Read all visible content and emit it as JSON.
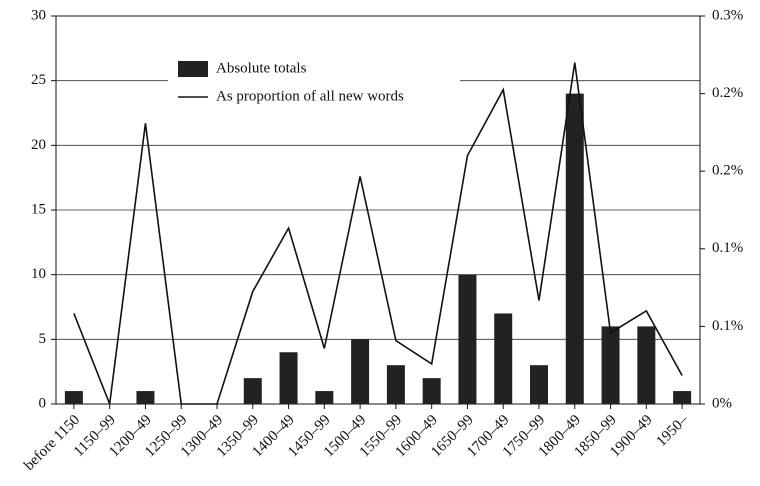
{
  "chart_data": {
    "type": "bar_line",
    "categories": [
      "before 1150",
      "1150–99",
      "1200–49",
      "1250–99",
      "1300–49",
      "1350–99",
      "1400–49",
      "1450–99",
      "1500–49",
      "1550–99",
      "1600–49",
      "1650–99",
      "1700–49",
      "1750–99",
      "1800–49",
      "1850–99",
      "1900–49",
      "1950–"
    ],
    "series": [
      {
        "name": "Absolute totals",
        "type": "bar",
        "color": "#222222",
        "values": [
          1,
          0,
          1,
          0,
          0,
          2,
          4,
          1,
          5,
          3,
          2,
          10,
          7,
          3,
          24,
          6,
          6,
          1
        ]
      },
      {
        "name": "As proportion of all new words",
        "type": "line",
        "axis": "y2",
        "color": "#111111",
        "values": [
          0.07,
          0,
          0.217,
          0,
          0,
          0.087,
          0.136,
          0.043,
          0.176,
          0.049,
          0.031,
          0.192,
          0.243,
          0.08,
          0.264,
          0.055,
          0.072,
          0.022
        ]
      }
    ],
    "ylim": [
      0,
      30
    ],
    "yticks": [
      0,
      5,
      10,
      15,
      20,
      25,
      30
    ],
    "y2lim": [
      0,
      0.3
    ],
    "y2ticks": [
      {
        "value": 0,
        "label": "0%"
      },
      {
        "value": 0.06,
        "label": "0.1%"
      },
      {
        "value": 0.12,
        "label": "0.1%"
      },
      {
        "value": 0.18,
        "label": "0.2%"
      },
      {
        "value": 0.24,
        "label": "0.2%"
      },
      {
        "value": 0.3,
        "label": "0.3%"
      }
    ],
    "grid": true,
    "legend": "top-left"
  }
}
